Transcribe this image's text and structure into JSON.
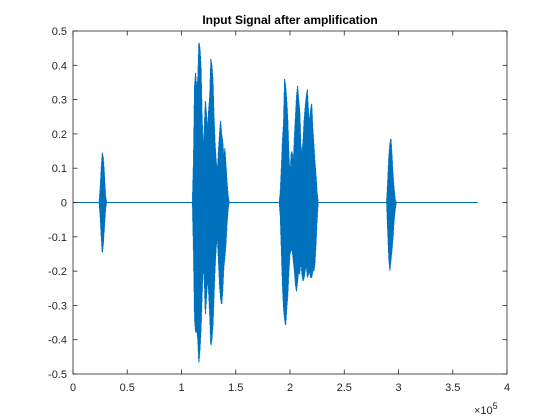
{
  "chart_data": {
    "type": "line",
    "title": "Input Signal after amplification",
    "xlabel": "",
    "ylabel": "",
    "xlim": [
      0,
      400000
    ],
    "ylim": [
      -0.5,
      0.5
    ],
    "x_ticks": [
      0,
      50000,
      100000,
      150000,
      200000,
      250000,
      300000,
      350000,
      400000
    ],
    "x_tick_labels": [
      "0",
      "0.5",
      "1",
      "1.5",
      "2",
      "2.5",
      "3",
      "3.5",
      "4"
    ],
    "x_exponent_label": "×10",
    "x_exponent_power": "5",
    "y_ticks": [
      -0.5,
      -0.4,
      -0.3,
      -0.2,
      -0.1,
      0,
      0.1,
      0.2,
      0.3,
      0.4,
      0.5
    ],
    "y_tick_labels": [
      "-0.5",
      "-0.4",
      "-0.3",
      "-0.2",
      "-0.1",
      "0",
      "0.1",
      "0.2",
      "0.3",
      "0.4",
      "0.5"
    ],
    "grid": false,
    "line_color": "#0072BD",
    "signal_end": 373000,
    "series": [
      {
        "values": [
          {
            "x": 0,
            "max": 0,
            "min": 0
          },
          {
            "x": 24000,
            "max": 0,
            "min": 0
          },
          {
            "x": 25000,
            "max": 0.04,
            "min": -0.04
          },
          {
            "x": 26000,
            "max": 0.1,
            "min": -0.1
          },
          {
            "x": 27000,
            "max": 0.145,
            "min": -0.15
          },
          {
            "x": 28000,
            "max": 0.13,
            "min": -0.12
          },
          {
            "x": 29000,
            "max": 0.08,
            "min": -0.07
          },
          {
            "x": 30000,
            "max": 0.02,
            "min": -0.02
          },
          {
            "x": 31000,
            "max": 0,
            "min": 0
          },
          {
            "x": 110000,
            "max": 0,
            "min": 0
          },
          {
            "x": 111000,
            "max": 0.12,
            "min": -0.14
          },
          {
            "x": 112000,
            "max": 0.34,
            "min": -0.34
          },
          {
            "x": 113000,
            "max": 0.38,
            "min": -0.38
          },
          {
            "x": 114000,
            "max": 0.33,
            "min": -0.37
          },
          {
            "x": 115000,
            "max": 0.36,
            "min": -0.4
          },
          {
            "x": 116000,
            "max": 0.47,
            "min": -0.47
          },
          {
            "x": 117000,
            "max": 0.45,
            "min": -0.43
          },
          {
            "x": 118000,
            "max": 0.4,
            "min": -0.37
          },
          {
            "x": 119000,
            "max": 0.25,
            "min": -0.27
          },
          {
            "x": 120000,
            "max": 0.15,
            "min": -0.18
          },
          {
            "x": 121000,
            "max": 0.22,
            "min": -0.23
          },
          {
            "x": 122000,
            "max": 0.3,
            "min": -0.33
          },
          {
            "x": 123000,
            "max": 0.26,
            "min": -0.28
          },
          {
            "x": 124000,
            "max": 0.21,
            "min": -0.22
          },
          {
            "x": 125000,
            "max": 0.27,
            "min": -0.26
          },
          {
            "x": 126000,
            "max": 0.31,
            "min": -0.33
          },
          {
            "x": 127000,
            "max": 0.42,
            "min": -0.42
          },
          {
            "x": 128000,
            "max": 0.4,
            "min": -0.4
          },
          {
            "x": 129000,
            "max": 0.36,
            "min": -0.36
          },
          {
            "x": 130000,
            "max": 0.25,
            "min": -0.27
          },
          {
            "x": 131000,
            "max": 0.17,
            "min": -0.19
          },
          {
            "x": 132000,
            "max": 0.12,
            "min": -0.13
          },
          {
            "x": 133000,
            "max": 0.09,
            "min": -0.1
          },
          {
            "x": 134000,
            "max": 0.15,
            "min": -0.17
          },
          {
            "x": 135000,
            "max": 0.2,
            "min": -0.24
          },
          {
            "x": 136000,
            "max": 0.24,
            "min": -0.28
          },
          {
            "x": 137000,
            "max": 0.2,
            "min": -0.3
          },
          {
            "x": 138000,
            "max": 0.18,
            "min": -0.26
          },
          {
            "x": 139000,
            "max": 0.13,
            "min": -0.19
          },
          {
            "x": 140000,
            "max": 0.16,
            "min": -0.16
          },
          {
            "x": 141000,
            "max": 0.11,
            "min": -0.12
          },
          {
            "x": 142000,
            "max": 0.06,
            "min": -0.06
          },
          {
            "x": 143000,
            "max": 0.02,
            "min": -0.02
          },
          {
            "x": 144000,
            "max": 0,
            "min": 0
          },
          {
            "x": 190000,
            "max": 0,
            "min": 0
          },
          {
            "x": 191000,
            "max": 0.03,
            "min": -0.04
          },
          {
            "x": 192000,
            "max": 0.1,
            "min": -0.14
          },
          {
            "x": 193000,
            "max": 0.18,
            "min": -0.24
          },
          {
            "x": 194000,
            "max": 0.23,
            "min": -0.31
          },
          {
            "x": 195000,
            "max": 0.36,
            "min": -0.34
          },
          {
            "x": 196000,
            "max": 0.34,
            "min": -0.36
          },
          {
            "x": 197000,
            "max": 0.3,
            "min": -0.31
          },
          {
            "x": 198000,
            "max": 0.24,
            "min": -0.27
          },
          {
            "x": 199000,
            "max": 0.14,
            "min": -0.2
          },
          {
            "x": 200000,
            "max": 0.08,
            "min": -0.15
          },
          {
            "x": 201000,
            "max": 0.14,
            "min": -0.14
          },
          {
            "x": 202000,
            "max": 0.15,
            "min": -0.14
          },
          {
            "x": 203000,
            "max": 0.11,
            "min": -0.17
          },
          {
            "x": 204000,
            "max": 0.19,
            "min": -0.2
          },
          {
            "x": 205000,
            "max": 0.25,
            "min": -0.24
          },
          {
            "x": 206000,
            "max": 0.31,
            "min": -0.26
          },
          {
            "x": 207000,
            "max": 0.34,
            "min": -0.23
          },
          {
            "x": 208000,
            "max": 0.3,
            "min": -0.2
          },
          {
            "x": 209000,
            "max": 0.27,
            "min": -0.21
          },
          {
            "x": 210000,
            "max": 0.17,
            "min": -0.17
          },
          {
            "x": 211000,
            "max": 0.14,
            "min": -0.21
          },
          {
            "x": 212000,
            "max": 0.18,
            "min": -0.23
          },
          {
            "x": 213000,
            "max": 0.24,
            "min": -0.22
          },
          {
            "x": 214000,
            "max": 0.28,
            "min": -0.2
          },
          {
            "x": 215000,
            "max": 0.31,
            "min": -0.18
          },
          {
            "x": 216000,
            "max": 0.33,
            "min": -0.22
          },
          {
            "x": 217000,
            "max": 0.27,
            "min": -0.21
          },
          {
            "x": 218000,
            "max": 0.23,
            "min": -0.2
          },
          {
            "x": 219000,
            "max": 0.27,
            "min": -0.22
          },
          {
            "x": 220000,
            "max": 0.29,
            "min": -0.22
          },
          {
            "x": 221000,
            "max": 0.22,
            "min": -0.2
          },
          {
            "x": 222000,
            "max": 0.17,
            "min": -0.2
          },
          {
            "x": 223000,
            "max": 0.12,
            "min": -0.18
          },
          {
            "x": 224000,
            "max": 0.08,
            "min": -0.12
          },
          {
            "x": 225000,
            "max": 0.03,
            "min": -0.05
          },
          {
            "x": 226000,
            "max": 0,
            "min": 0
          },
          {
            "x": 289000,
            "max": 0,
            "min": 0
          },
          {
            "x": 290000,
            "max": 0.06,
            "min": -0.08
          },
          {
            "x": 291000,
            "max": 0.13,
            "min": -0.16
          },
          {
            "x": 292000,
            "max": 0.17,
            "min": -0.2
          },
          {
            "x": 293000,
            "max": 0.19,
            "min": -0.17
          },
          {
            "x": 294000,
            "max": 0.14,
            "min": -0.14
          },
          {
            "x": 295000,
            "max": 0.08,
            "min": -0.1
          },
          {
            "x": 296000,
            "max": 0.04,
            "min": -0.05
          },
          {
            "x": 297000,
            "max": 0.01,
            "min": -0.02
          },
          {
            "x": 298000,
            "max": 0,
            "min": 0
          },
          {
            "x": 373000,
            "max": 0,
            "min": 0
          }
        ]
      }
    ]
  }
}
